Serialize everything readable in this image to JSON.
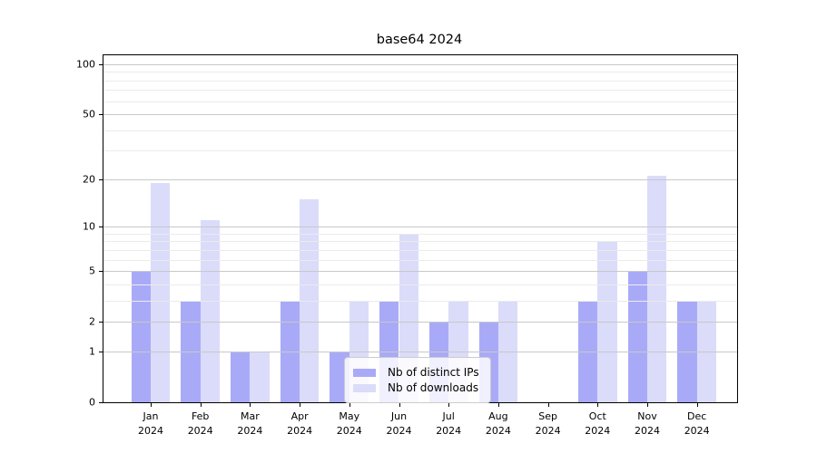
{
  "chart_data": {
    "type": "bar",
    "title": "base64 2024",
    "categories": [
      "Jan",
      "Feb",
      "Mar",
      "Apr",
      "May",
      "Jun",
      "Jul",
      "Aug",
      "Sep",
      "Oct",
      "Nov",
      "Dec"
    ],
    "tick_year": "2024",
    "series": [
      {
        "name": "Nb of distinct IPs",
        "color": "#a9aaf7",
        "values": [
          5,
          3,
          1,
          3,
          1,
          3,
          2,
          2,
          0,
          3,
          5,
          3
        ]
      },
      {
        "name": "Nb of downloads",
        "color": "#dbdcfa",
        "values": [
          19,
          11,
          1,
          15,
          3,
          9,
          3,
          3,
          0,
          8,
          21,
          3
        ]
      }
    ],
    "yscale": "log1p",
    "ylim": [
      0,
      113
    ],
    "yticks": [
      0,
      1,
      2,
      5,
      10,
      20,
      50,
      100
    ],
    "yticks_minor": [
      3,
      4,
      6,
      7,
      8,
      9,
      30,
      40,
      60,
      70,
      80,
      90
    ],
    "grid": "horizontal-on-top",
    "legend_position": "lower-center",
    "colors": {
      "major_grid": "#c8c8c8",
      "minor_grid": "#ebebeb",
      "spine": "#000000",
      "legend_border": "#cccccc"
    }
  }
}
